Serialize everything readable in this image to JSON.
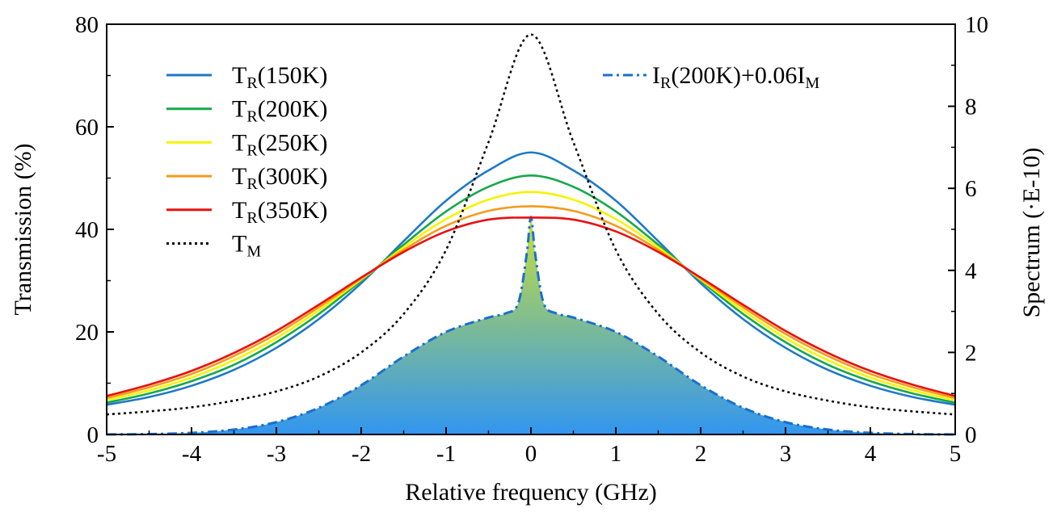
{
  "chart_data": {
    "type": "line",
    "xlabel": "Relative frequency (GHz)",
    "ylabel_left": "Transmission (%)",
    "ylabel_right": "Spectrum (·E-10)",
    "xlim": [
      -5,
      5
    ],
    "ylim_left": [
      0,
      80
    ],
    "ylim_right": [
      0,
      10
    ],
    "x_ticks": [
      "-5",
      "-4",
      "-3",
      "-2",
      "-1",
      "0",
      "1",
      "2",
      "3",
      "4",
      "5"
    ],
    "y_ticks_left": [
      "0",
      "20",
      "40",
      "60",
      "80"
    ],
    "y_ticks_right": [
      "0",
      "2",
      "4",
      "6",
      "8",
      "10"
    ],
    "grid": false,
    "legend_left_position": "top-left",
    "legend_right_position": "top-right",
    "x": [
      -5,
      -4.5,
      -4,
      -3.5,
      -3,
      -2.5,
      -2,
      -1.5,
      -1,
      -0.5,
      0,
      0.5,
      1,
      1.5,
      2,
      2.5,
      3,
      3.5,
      4,
      4.5,
      5
    ],
    "series": [
      {
        "name_main": "T",
        "name_sub": "R",
        "name_tail": "(150K)",
        "axis": "left",
        "color": "#1f78c8",
        "dash": "solid",
        "values": [
          5.8,
          7.3,
          9.5,
          12.6,
          16.9,
          22.5,
          29.5,
          37.7,
          45.6,
          51.5,
          55.0,
          51.5,
          45.6,
          37.7,
          29.5,
          22.5,
          16.9,
          12.6,
          9.5,
          7.3,
          5.8
        ]
      },
      {
        "name_main": "T",
        "name_sub": "R",
        "name_tail": "(200K)",
        "axis": "left",
        "color": "#16a84a",
        "dash": "solid",
        "values": [
          6.2,
          8.0,
          10.4,
          13.6,
          18.0,
          23.5,
          30.0,
          37.0,
          43.5,
          48.3,
          50.5,
          48.3,
          43.5,
          37.0,
          30.0,
          23.5,
          18.0,
          13.6,
          10.4,
          8.0,
          6.2
        ]
      },
      {
        "name_main": "T",
        "name_sub": "R",
        "name_tail": "(250K)",
        "axis": "left",
        "color": "#f4f400",
        "dash": "solid",
        "values": [
          6.7,
          8.6,
          11.1,
          14.5,
          18.8,
          24.2,
          30.2,
          36.5,
          42.0,
          45.8,
          47.3,
          45.8,
          42.0,
          36.5,
          30.2,
          24.2,
          18.8,
          14.5,
          11.1,
          8.6,
          6.7
        ]
      },
      {
        "name_main": "T",
        "name_sub": "R",
        "name_tail": "(300K)",
        "axis": "left",
        "color": "#f59b1a",
        "dash": "solid",
        "values": [
          7.1,
          9.2,
          11.8,
          15.3,
          19.6,
          24.8,
          30.4,
          36.0,
          40.7,
          43.6,
          44.5,
          43.6,
          40.7,
          36.0,
          30.4,
          24.8,
          19.6,
          15.3,
          11.8,
          9.2,
          7.1
        ]
      },
      {
        "name_main": "T",
        "name_sub": "R",
        "name_tail": "(350K)",
        "axis": "left",
        "color": "#e81010",
        "dash": "solid",
        "values": [
          7.5,
          9.7,
          12.4,
          15.9,
          20.2,
          25.3,
          30.6,
          35.6,
          39.6,
          41.9,
          42.3,
          41.9,
          39.6,
          35.6,
          30.6,
          25.3,
          20.2,
          15.9,
          12.4,
          9.7,
          7.5
        ]
      },
      {
        "name_main": "T",
        "name_sub": "M",
        "name_tail": "",
        "axis": "left",
        "color": "#000000",
        "dash": "dotted",
        "values": [
          3.9,
          4.5,
          5.3,
          6.6,
          8.4,
          11.3,
          16.0,
          23.5,
          36.0,
          57.0,
          78.0,
          57.0,
          36.0,
          23.5,
          16.0,
          11.3,
          8.4,
          6.6,
          5.3,
          4.5,
          3.9
        ]
      }
    ],
    "spectrum_series": {
      "name_main": "I",
      "name_sub": "R",
      "name_mid": "(200K)+0.06I",
      "name_sub2": "M",
      "axis": "right",
      "color": "#1a6fd0",
      "dash": "dashdot",
      "fill_top": "#c8e03a",
      "fill_bottom": "#3296f0",
      "x": [
        -5,
        -4.5,
        -4,
        -3.5,
        -3,
        -2.5,
        -2,
        -1.5,
        -1,
        -0.5,
        -0.3,
        -0.15,
        -0.05,
        0,
        0.05,
        0.15,
        0.3,
        0.5,
        1,
        1.5,
        2,
        2.5,
        3,
        3.5,
        4,
        4.5,
        5
      ],
      "values": [
        0.0,
        0.01,
        0.04,
        0.12,
        0.3,
        0.65,
        1.2,
        1.9,
        2.5,
        2.85,
        2.95,
        3.2,
        4.4,
        5.3,
        4.4,
        3.2,
        2.95,
        2.85,
        2.5,
        1.9,
        1.2,
        0.65,
        0.3,
        0.12,
        0.04,
        0.01,
        0.0
      ]
    }
  }
}
